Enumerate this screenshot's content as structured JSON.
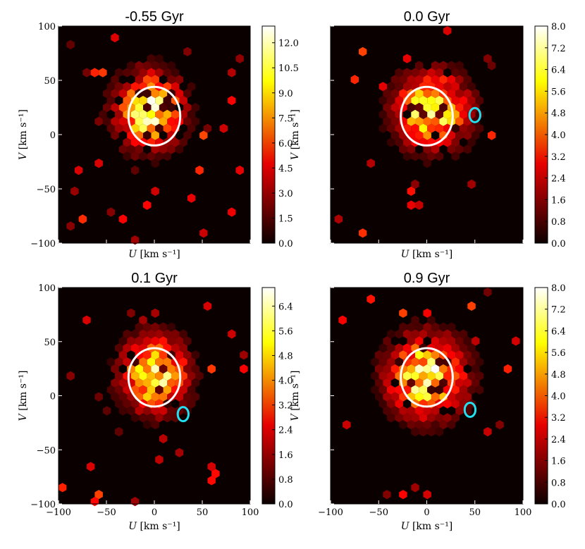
{
  "chart_data": [
    {
      "type": "heatmap",
      "title": "-0.55 Gyr",
      "xlabel": "U",
      "xlabel_unit": "[km s⁻¹]",
      "ylabel": "V",
      "ylabel_unit": "[km s⁻¹]",
      "xlim": [
        -100,
        100
      ],
      "ylim": [
        -100,
        100
      ],
      "yticks": [
        "100",
        "50",
        "0",
        "−50",
        "−100"
      ],
      "xticks": [],
      "colorbar_ticks": [
        "0.0",
        "1.5",
        "3.0",
        "4.5",
        "6.0",
        "7.5",
        "9.0",
        "10.5",
        "12.0"
      ],
      "colorbar_max": 13,
      "circle": {
        "center": [
          0,
          17
        ],
        "radius": 27,
        "color": "#ffffff"
      },
      "marker": null,
      "density_peak": [
        -5,
        22
      ],
      "density_spread": [
        22,
        22
      ]
    },
    {
      "type": "heatmap",
      "title": "0.0 Gyr",
      "xlabel": "U",
      "xlabel_unit": "[km s⁻¹]",
      "ylabel": "V",
      "ylabel_unit": "[km s⁻¹]",
      "xlim": [
        -100,
        100
      ],
      "ylim": [
        -100,
        100
      ],
      "yticks": [
        "",
        "",
        "",
        "",
        ""
      ],
      "xticks": [],
      "colorbar_ticks": [
        "0.0",
        "0.8",
        "1.6",
        "2.4",
        "3.2",
        "4.0",
        "4.8",
        "5.6",
        "6.4",
        "7.2",
        "8.0"
      ],
      "colorbar_max": 8,
      "circle": {
        "center": [
          0,
          17
        ],
        "radius": 27,
        "color": "#ffffff"
      },
      "marker": {
        "center": [
          50,
          18
        ],
        "radius": 4.5,
        "color": "#22e0f0"
      },
      "density_peak": [
        5,
        22
      ],
      "density_spread": [
        24,
        22
      ]
    },
    {
      "type": "heatmap",
      "title": "0.1 Gyr",
      "xlabel": "U",
      "xlabel_unit": "[km s⁻¹]",
      "ylabel": "V",
      "ylabel_unit": "[km s⁻¹]",
      "xlim": [
        -100,
        100
      ],
      "ylim": [
        -100,
        100
      ],
      "yticks": [
        "100",
        "50",
        "0",
        "−50",
        "−100"
      ],
      "xticks": [
        "−100",
        "−50",
        "0",
        "50",
        "100"
      ],
      "colorbar_ticks": [
        "0.0",
        "0.8",
        "1.6",
        "2.4",
        "3.2",
        "4.0",
        "4.8",
        "5.6",
        "6.4"
      ],
      "colorbar_max": 7,
      "circle": {
        "center": [
          0,
          17
        ],
        "radius": 27,
        "color": "#ffffff"
      },
      "marker": {
        "center": [
          30,
          -17
        ],
        "radius": 4.5,
        "color": "#22e0f0"
      },
      "density_peak": [
        0,
        20
      ],
      "density_spread": [
        22,
        22
      ]
    },
    {
      "type": "heatmap",
      "title": "0.9 Gyr",
      "xlabel": "U",
      "xlabel_unit": "[km s⁻¹]",
      "ylabel": "V",
      "ylabel_unit": "[km s⁻¹]",
      "xlim": [
        -100,
        100
      ],
      "ylim": [
        -100,
        100
      ],
      "yticks": [
        "",
        "",
        "",
        "",
        ""
      ],
      "xticks": [
        "−100",
        "−50",
        "0",
        "50",
        "100"
      ],
      "colorbar_ticks": [
        "0.0",
        "0.8",
        "1.6",
        "2.4",
        "3.2",
        "4.0",
        "4.8",
        "5.6",
        "6.4",
        "7.2",
        "8.0"
      ],
      "colorbar_max": 8,
      "circle": {
        "center": [
          0,
          17
        ],
        "radius": 27,
        "color": "#ffffff"
      },
      "marker": {
        "center": [
          45,
          -13
        ],
        "radius": 4.5,
        "color": "#22e0f0"
      },
      "density_peak": [
        0,
        18
      ],
      "density_spread": [
        26,
        24
      ]
    }
  ]
}
